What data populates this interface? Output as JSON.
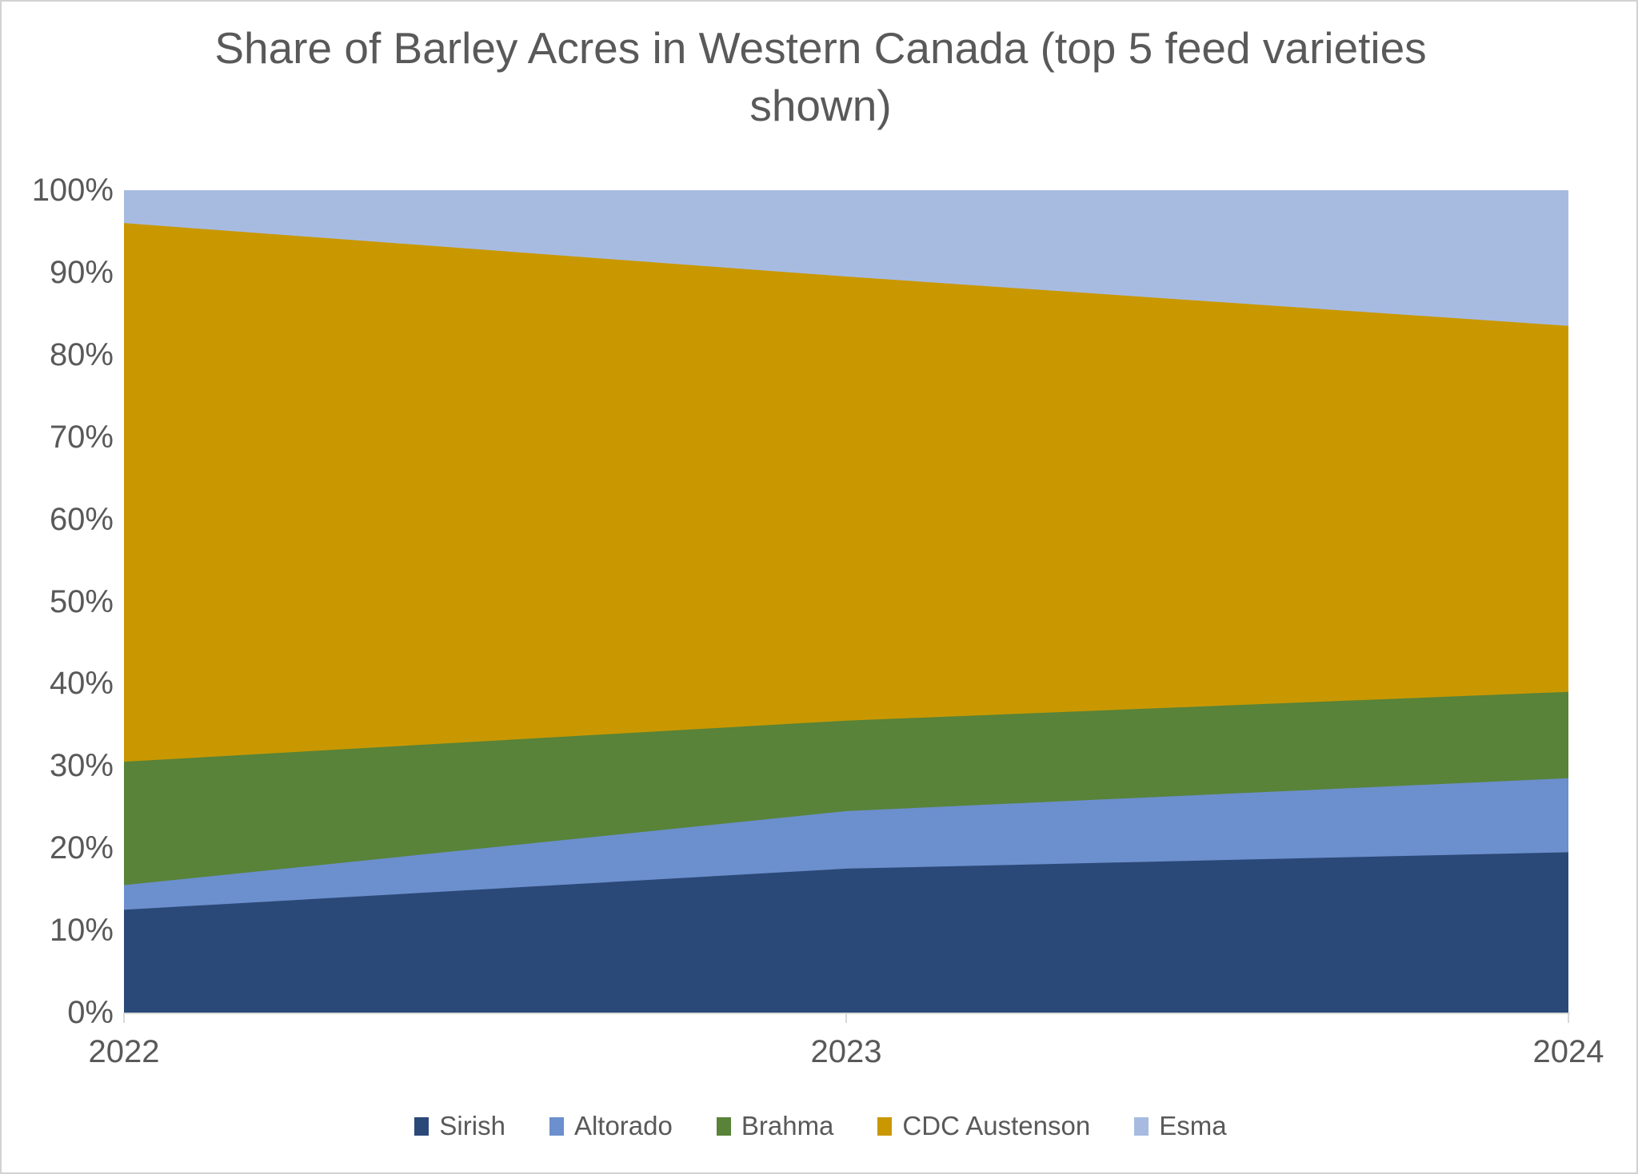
{
  "title": {
    "line1": "Share of Barley Acres in Western Canada (top 5 feed varieties",
    "line2": "shown)"
  },
  "styles": {
    "text_color": "#595959",
    "axis_line_color": "#d9d9d9",
    "background": "#ffffff"
  },
  "chart_data": {
    "type": "area",
    "stacked": true,
    "normalized": "100%",
    "title": "Share of Barley Acres in Western Canada (top 5 feed varieties shown)",
    "categories": [
      "2022",
      "2023",
      "2024"
    ],
    "series": [
      {
        "name": "Sirish",
        "color": "#2b4978",
        "values": [
          12.5,
          17.5,
          19.5
        ]
      },
      {
        "name": "Altorado",
        "color": "#6c8fcd",
        "values": [
          3,
          7,
          9
        ]
      },
      {
        "name": "Brahma",
        "color": "#588339",
        "values": [
          15,
          11,
          10.5
        ]
      },
      {
        "name": "CDC Austenson",
        "color": "#c99800",
        "values": [
          65.5,
          54,
          44.5
        ]
      },
      {
        "name": "Esma",
        "color": "#a7bbe1",
        "values": [
          4,
          10.5,
          16.5
        ]
      }
    ],
    "y_axis": {
      "ticks": [
        "0%",
        "10%",
        "20%",
        "30%",
        "40%",
        "50%",
        "60%",
        "70%",
        "80%",
        "90%",
        "100%"
      ],
      "range": [
        0,
        100
      ]
    },
    "xlabel": "",
    "ylabel": "",
    "gridlines": false,
    "legend_position": "bottom"
  }
}
